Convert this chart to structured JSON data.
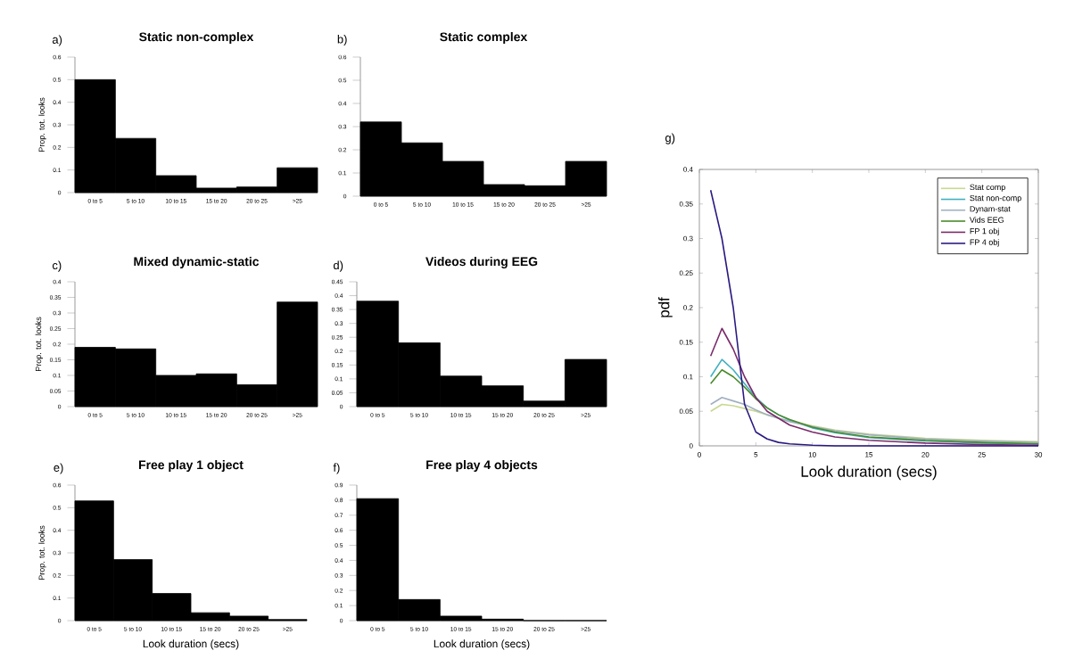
{
  "chart_data": [
    {
      "type": "bar",
      "title": "Static non-complex",
      "ylabel": "Prop. tot. looks",
      "annotations": [
        "a)"
      ],
      "categories": [
        "0 to 5",
        "5 to 10",
        "10 to 15",
        "15 to 20",
        "20 to 25",
        ">25"
      ],
      "ylim": [
        0,
        0.6
      ],
      "yticks": [
        0,
        0.1,
        0.2,
        0.3,
        0.4,
        0.5,
        0.6
      ],
      "series": [
        {
          "color": "#000000",
          "values": [
            0.5,
            0.24,
            0.075,
            0.02,
            0.025,
            0.11
          ]
        }
      ]
    },
    {
      "type": "bar",
      "title": "Static complex",
      "annotations": [
        "b)"
      ],
      "categories": [
        "0 to 5",
        "5 to 10",
        "10 to 15",
        "15 to 20",
        "20 to 25",
        ">25"
      ],
      "ylim": [
        0,
        0.6
      ],
      "yticks": [
        0,
        0.1,
        0.2,
        0.3,
        0.4,
        0.5,
        0.6
      ],
      "series": [
        {
          "color": "#000000",
          "values": [
            0.32,
            0.23,
            0.15,
            0.05,
            0.045,
            0.15
          ]
        }
      ]
    },
    {
      "type": "bar",
      "title": "Mixed dynamic-static",
      "ylabel": "Prop. tot. looks",
      "annotations": [
        "c)"
      ],
      "categories": [
        "0 to 5",
        "5 to 10",
        "10 to 15",
        "15 to 20",
        "20 to 25",
        ">25"
      ],
      "ylim": [
        0,
        0.4
      ],
      "yticks": [
        0,
        0.05,
        0.1,
        0.15,
        0.2,
        0.25,
        0.3,
        0.35,
        0.4
      ],
      "series": [
        {
          "color": "#000000",
          "values": [
            0.19,
            0.185,
            0.1,
            0.105,
            0.07,
            0.335
          ]
        }
      ]
    },
    {
      "type": "bar",
      "title": "Videos during EEG",
      "annotations": [
        "d)"
      ],
      "categories": [
        "0 to 5",
        "5 to 10",
        "10 to 15",
        "15 to 20",
        "20 to 25",
        ">25"
      ],
      "ylim": [
        0,
        0.45
      ],
      "yticks": [
        0,
        0.05,
        0.1,
        0.15,
        0.2,
        0.25,
        0.3,
        0.35,
        0.4,
        0.45
      ],
      "series": [
        {
          "color": "#000000",
          "values": [
            0.38,
            0.23,
            0.11,
            0.075,
            0.02,
            0.17
          ]
        }
      ]
    },
    {
      "type": "bar",
      "title": "Free play 1 object",
      "xlabel": "Look duration (secs)",
      "ylabel": "Prop. tot. looks",
      "annotations": [
        "e)"
      ],
      "categories": [
        "0 to 5",
        "5 to 10",
        "10 to 15",
        "15 to 20",
        "20 to 25",
        ">25"
      ],
      "ylim": [
        0,
        0.6
      ],
      "yticks": [
        0,
        0.1,
        0.2,
        0.3,
        0.4,
        0.5,
        0.6
      ],
      "series": [
        {
          "color": "#000000",
          "values": [
            0.53,
            0.27,
            0.12,
            0.035,
            0.02,
            0.005
          ]
        }
      ]
    },
    {
      "type": "bar",
      "title": "Free play 4 objects",
      "xlabel": "Look duration (secs)",
      "annotations": [
        "f)"
      ],
      "categories": [
        "0 to 5",
        "5 to 10",
        "10 to 15",
        "15 to 20",
        "20 to 25",
        ">25"
      ],
      "ylim": [
        0,
        0.9
      ],
      "yticks": [
        0,
        0.1,
        0.2,
        0.3,
        0.4,
        0.5,
        0.6,
        0.7,
        0.8,
        0.9
      ],
      "series": [
        {
          "color": "#000000",
          "values": [
            0.81,
            0.14,
            0.03,
            0.01,
            0,
            0
          ]
        }
      ]
    },
    {
      "type": "line",
      "xlabel": "Look duration (secs)",
      "ylabel": "pdf",
      "annotations": [
        "g)"
      ],
      "legend": "top right",
      "xlim": [
        0,
        30
      ],
      "xticks": [
        0,
        5,
        10,
        15,
        20,
        25,
        30
      ],
      "ylim": [
        0,
        0.4
      ],
      "yticks": [
        0,
        0.05,
        0.1,
        0.15,
        0.2,
        0.25,
        0.3,
        0.35,
        0.4
      ],
      "x": [
        1,
        2,
        3,
        4,
        5,
        6,
        7,
        8,
        10,
        12,
        15,
        20,
        25,
        30
      ],
      "series": [
        {
          "name": "Stat comp",
          "color": "#c8d890",
          "values": [
            0.05,
            0.06,
            0.058,
            0.054,
            0.05,
            0.045,
            0.04,
            0.036,
            0.029,
            0.023,
            0.017,
            0.011,
            0.008,
            0.006
          ]
        },
        {
          "name": "Stat non-comp",
          "color": "#40b0c0",
          "values": [
            0.1,
            0.125,
            0.11,
            0.09,
            0.07,
            0.055,
            0.045,
            0.037,
            0.026,
            0.019,
            0.012,
            0.007,
            0.004,
            0.003
          ]
        },
        {
          "name": "Dynam-stat",
          "color": "#a0b0c0",
          "values": [
            0.06,
            0.07,
            0.065,
            0.06,
            0.052,
            0.045,
            0.04,
            0.035,
            0.028,
            0.022,
            0.016,
            0.01,
            0.007,
            0.005
          ]
        },
        {
          "name": "Vids EEG",
          "color": "#4a8a2a",
          "values": [
            0.09,
            0.11,
            0.1,
            0.085,
            0.068,
            0.055,
            0.045,
            0.038,
            0.027,
            0.02,
            0.013,
            0.008,
            0.005,
            0.003
          ]
        },
        {
          "name": "FP 1 obj",
          "color": "#7a2a6a",
          "values": [
            0.13,
            0.17,
            0.14,
            0.1,
            0.07,
            0.05,
            0.04,
            0.03,
            0.02,
            0.013,
            0.008,
            0.004,
            0.002,
            0.001
          ]
        },
        {
          "name": "FP 4 obj",
          "color": "#2a1a80",
          "values": [
            0.37,
            0.3,
            0.2,
            0.06,
            0.02,
            0.01,
            0.005,
            0.003,
            0.001,
            0,
            0,
            0,
            0,
            0
          ]
        }
      ]
    }
  ]
}
